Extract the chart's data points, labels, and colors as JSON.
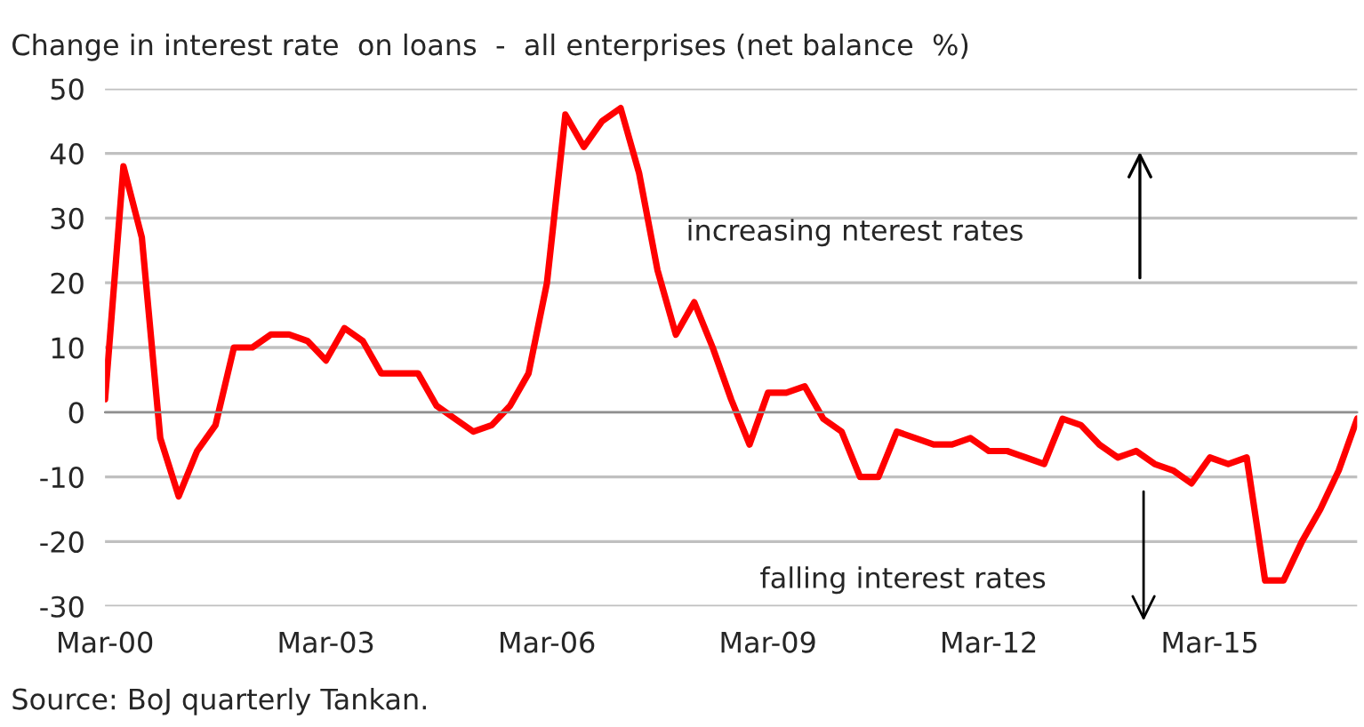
{
  "chart_data": {
    "type": "line",
    "title": "Change in interest rate  on loans  -  all enterprises (net balance  %)",
    "categories": [
      "Mar-00",
      null,
      null,
      null,
      null,
      null,
      null,
      null,
      null,
      null,
      null,
      null,
      "Mar-03",
      null,
      null,
      null,
      null,
      null,
      null,
      null,
      null,
      null,
      null,
      null,
      "Mar-06",
      null,
      null,
      null,
      null,
      null,
      null,
      null,
      null,
      null,
      null,
      null,
      "Mar-09",
      null,
      null,
      null,
      null,
      null,
      null,
      null,
      null,
      null,
      null,
      null,
      "Mar-12",
      null,
      null,
      null,
      null,
      null,
      null,
      null,
      null,
      null,
      null,
      null,
      "Mar-15",
      null,
      null,
      null,
      null,
      null,
      null,
      null,
      null
    ],
    "series": [
      {
        "color": "#ff0000",
        "values": [
          2,
          38,
          27,
          -4,
          -13,
          -6,
          -2,
          10,
          10,
          12,
          12,
          11,
          8,
          13,
          11,
          6,
          6,
          6,
          1,
          -1,
          -3,
          -2,
          1,
          6,
          20,
          46,
          41,
          45,
          47,
          37,
          22,
          12,
          17,
          10,
          2,
          -5,
          3,
          3,
          4,
          -1,
          -3,
          -10,
          -10,
          -3,
          -4,
          -5,
          -5,
          -4,
          -6,
          -6,
          -7,
          -8,
          -1,
          -2,
          -5,
          -7,
          -6,
          -8,
          -9,
          -11,
          -7,
          -8,
          -7,
          -26,
          -26,
          -20,
          -15,
          -9,
          -1
        ]
      }
    ],
    "ylim": [
      -30,
      50
    ],
    "yticks": [
      -30,
      -20,
      -10,
      0,
      10,
      20,
      30,
      40,
      50
    ],
    "grid": "y",
    "legend": false,
    "annotations": [
      "increasing nterest rates",
      "falling interest rates",
      "Source: BoJ quarterly Tankan."
    ]
  }
}
